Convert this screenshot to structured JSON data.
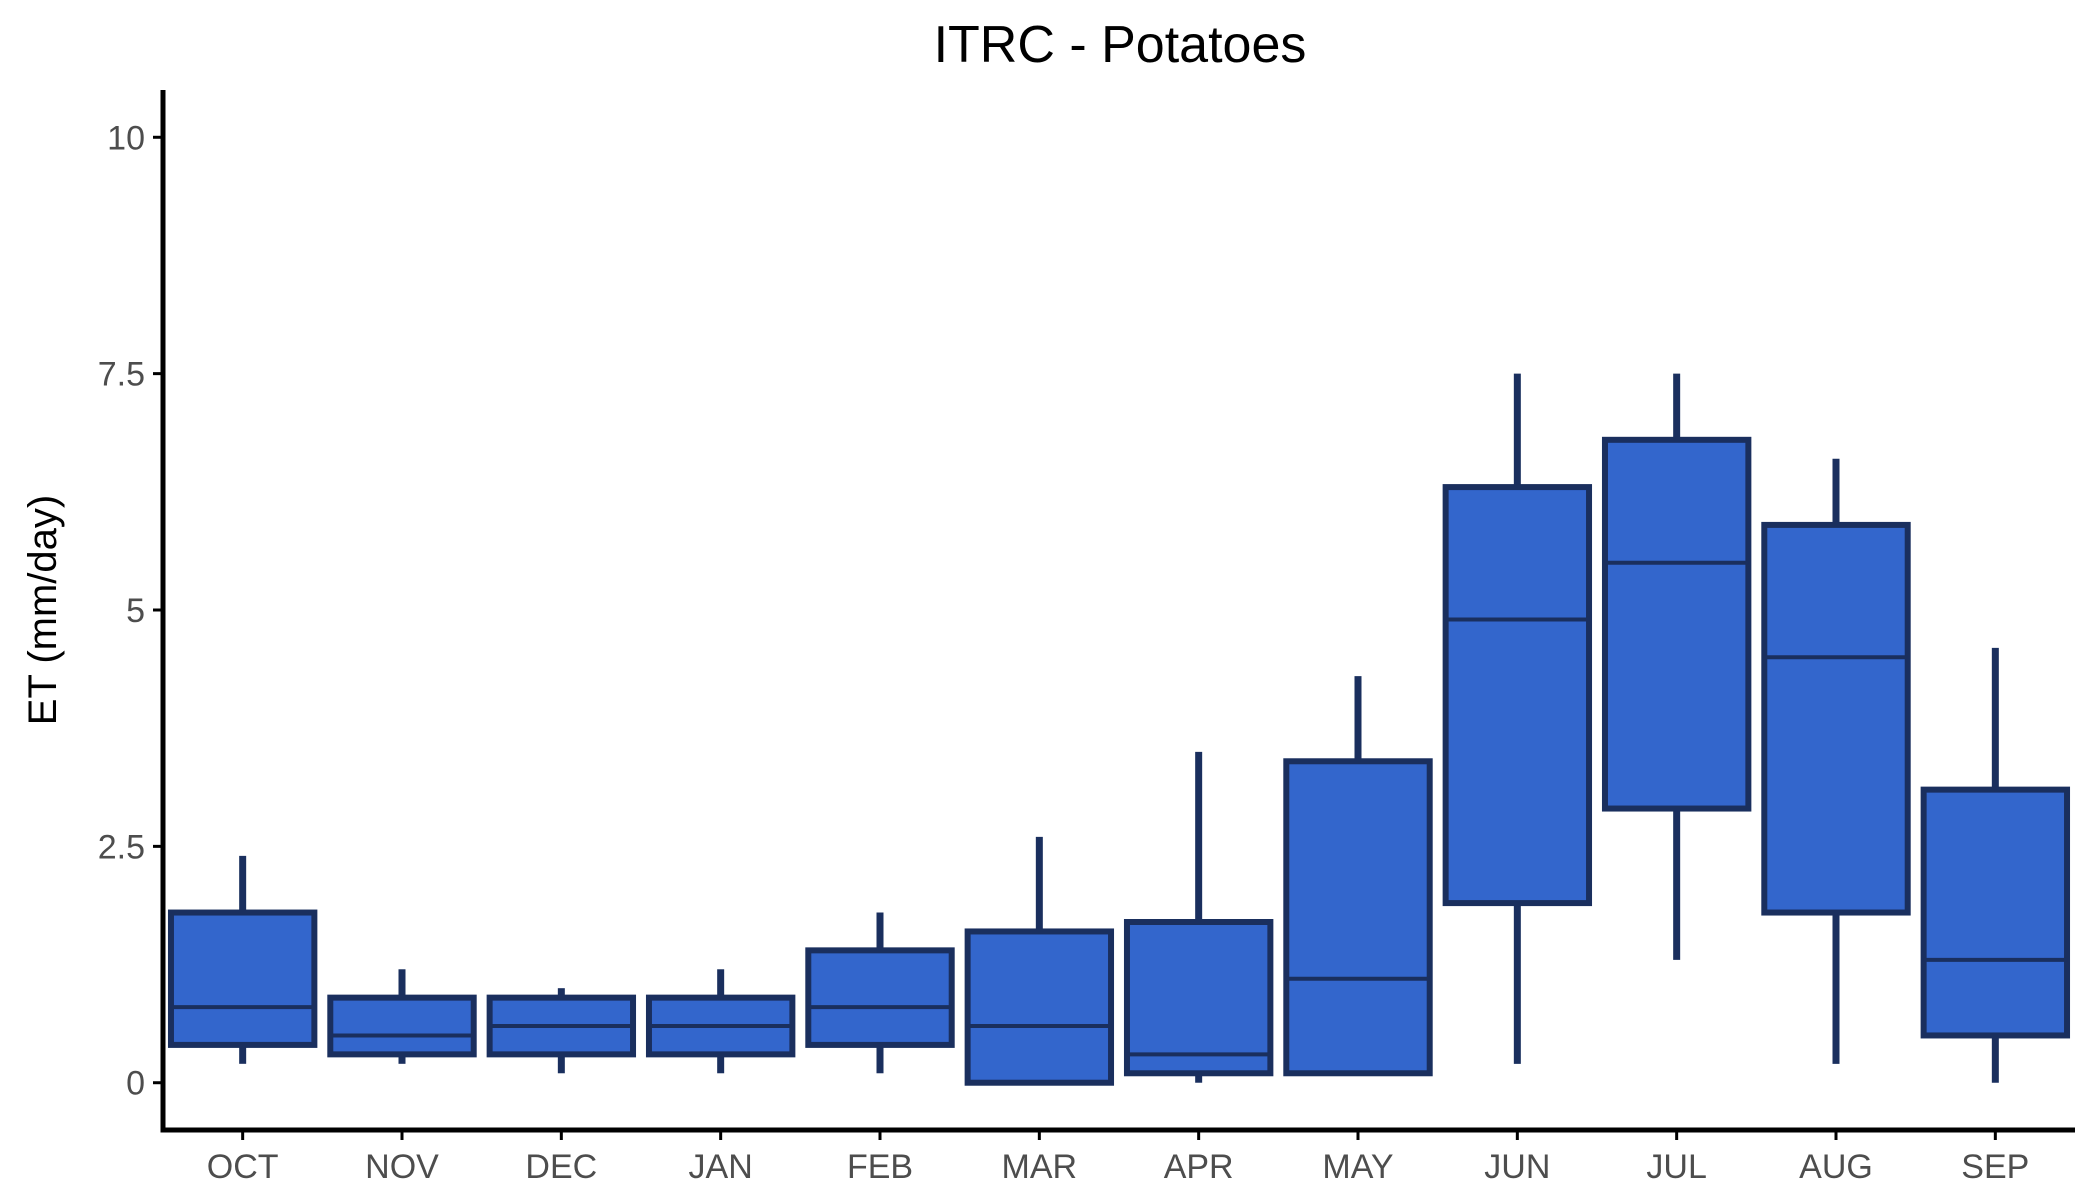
{
  "chart_data": {
    "type": "boxplot",
    "title": "ITRC - Potatoes",
    "xlabel": "",
    "ylabel": "ET (mm/day)",
    "ylim": [
      -0.5,
      10.5
    ],
    "yticks": [
      0,
      2.5,
      5,
      7.5,
      10
    ],
    "ytick_labels": [
      "0",
      "2.5",
      "5",
      "7.5",
      "10"
    ],
    "grid": false,
    "legend": "none",
    "colors": {
      "box_fill": "#3366cc",
      "box_stroke": "#1a2f5e",
      "axis": "#000000"
    },
    "categories": [
      "OCT",
      "NOV",
      "DEC",
      "JAN",
      "FEB",
      "MAR",
      "APR",
      "MAY",
      "JUN",
      "JUL",
      "AUG",
      "SEP"
    ],
    "boxes": [
      {
        "min": 0.2,
        "q1": 0.4,
        "median": 0.8,
        "q3": 1.8,
        "max": 2.4
      },
      {
        "min": 0.2,
        "q1": 0.3,
        "median": 0.5,
        "q3": 0.9,
        "max": 1.2
      },
      {
        "min": 0.1,
        "q1": 0.3,
        "median": 0.6,
        "q3": 0.9,
        "max": 1.0
      },
      {
        "min": 0.1,
        "q1": 0.3,
        "median": 0.6,
        "q3": 0.9,
        "max": 1.2
      },
      {
        "min": 0.1,
        "q1": 0.4,
        "median": 0.8,
        "q3": 1.4,
        "max": 1.8
      },
      {
        "min": 0.0,
        "q1": 0.0,
        "median": 0.6,
        "q3": 1.6,
        "max": 2.6
      },
      {
        "min": 0.0,
        "q1": 0.1,
        "median": 0.3,
        "q3": 1.7,
        "max": 3.5
      },
      {
        "min": 0.1,
        "q1": 0.1,
        "median": 1.1,
        "q3": 3.4,
        "max": 4.3
      },
      {
        "min": 0.2,
        "q1": 1.9,
        "median": 4.9,
        "q3": 6.3,
        "max": 7.5
      },
      {
        "min": 1.3,
        "q1": 2.9,
        "median": 5.5,
        "q3": 6.8,
        "max": 7.5
      },
      {
        "min": 0.2,
        "q1": 1.8,
        "median": 4.5,
        "q3": 5.9,
        "max": 6.6
      },
      {
        "min": 0.0,
        "q1": 0.5,
        "median": 1.3,
        "q3": 3.1,
        "max": 4.6
      }
    ]
  }
}
